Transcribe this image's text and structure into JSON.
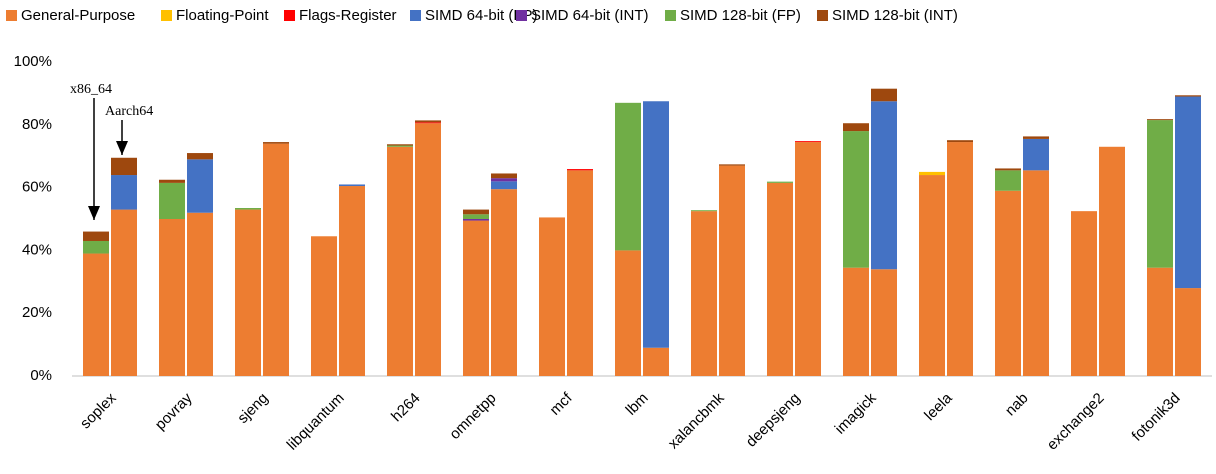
{
  "chart_data": {
    "type": "stacked_paired_bar",
    "categories": [
      "soplex",
      "povray",
      "sjeng",
      "libquantum",
      "h264",
      "omnetpp",
      "mcf",
      "lbm",
      "xalancbmk",
      "deepsjeng",
      "imagick",
      "leela",
      "nab",
      "exchange2",
      "fotonik3d"
    ],
    "annotations": [
      "x86_64",
      "Aarch64"
    ],
    "ylim": [
      0,
      100
    ],
    "yticks": [
      {
        "value": 0,
        "label": "0%"
      },
      {
        "value": 20,
        "label": "20%"
      },
      {
        "value": 40,
        "label": "40%"
      },
      {
        "value": 60,
        "label": "60%"
      },
      {
        "value": 80,
        "label": "80%"
      },
      {
        "value": 100,
        "label": "100%"
      }
    ],
    "grid": false,
    "legend": "top",
    "series": [
      {
        "name": "General-Purpose",
        "color": "#ed7d31",
        "values": [
          [
            39,
            53
          ],
          [
            50,
            52
          ],
          [
            53,
            74
          ],
          [
            44.5,
            60.5
          ],
          [
            73,
            80.5
          ],
          [
            49.5,
            59.5
          ],
          [
            50.5,
            65.5
          ],
          [
            40,
            9
          ],
          [
            52.5,
            67
          ],
          [
            61.5,
            74.5
          ],
          [
            34.5,
            34
          ],
          [
            64,
            74.5
          ],
          [
            59,
            65.5
          ],
          [
            52.5,
            73
          ],
          [
            34.5,
            28
          ]
        ]
      },
      {
        "name": "Floating-Point",
        "color": "#ffc000",
        "values": [
          [
            0,
            0
          ],
          [
            0,
            0
          ],
          [
            0,
            0
          ],
          [
            0,
            0
          ],
          [
            0,
            0
          ],
          [
            0,
            0
          ],
          [
            0,
            0
          ],
          [
            0,
            0
          ],
          [
            0,
            0
          ],
          [
            0,
            0
          ],
          [
            0,
            0
          ],
          [
            1,
            0
          ],
          [
            0,
            0
          ],
          [
            0,
            0
          ],
          [
            0,
            0
          ]
        ]
      },
      {
        "name": "Flags-Register",
        "color": "#ff0000",
        "values": [
          [
            0,
            0
          ],
          [
            0,
            0
          ],
          [
            0,
            0
          ],
          [
            0,
            0
          ],
          [
            0,
            0.3
          ],
          [
            0,
            0
          ],
          [
            0,
            0.4
          ],
          [
            0,
            0
          ],
          [
            0,
            0
          ],
          [
            0,
            0.3
          ],
          [
            0,
            0
          ],
          [
            0,
            0
          ],
          [
            0,
            0
          ],
          [
            0,
            0
          ],
          [
            0,
            0
          ]
        ]
      },
      {
        "name": "SIMD 64-bit (FP)",
        "color": "#4472c4",
        "values": [
          [
            0,
            11
          ],
          [
            0,
            17
          ],
          [
            0,
            0
          ],
          [
            0,
            0.5
          ],
          [
            0,
            0
          ],
          [
            0,
            2.5
          ],
          [
            0,
            0
          ],
          [
            0,
            78.5
          ],
          [
            0,
            0
          ],
          [
            0,
            0
          ],
          [
            0,
            53.5
          ],
          [
            0,
            0
          ],
          [
            0,
            10
          ],
          [
            0,
            0
          ],
          [
            0,
            61
          ]
        ]
      },
      {
        "name": "SIMD 64-bit (INT)",
        "color": "#7030a0",
        "values": [
          [
            0,
            0
          ],
          [
            0,
            0
          ],
          [
            0,
            0
          ],
          [
            0,
            0
          ],
          [
            0,
            0
          ],
          [
            0.5,
            1
          ],
          [
            0,
            0
          ],
          [
            0,
            0
          ],
          [
            0,
            0
          ],
          [
            0,
            0
          ],
          [
            0,
            0
          ],
          [
            0,
            0
          ],
          [
            0,
            0
          ],
          [
            0,
            0
          ],
          [
            0,
            0
          ]
        ]
      },
      {
        "name": "SIMD 128-bit (FP)",
        "color": "#70ad47",
        "values": [
          [
            4,
            0
          ],
          [
            11.5,
            0
          ],
          [
            0.5,
            0
          ],
          [
            0,
            0
          ],
          [
            0.4,
            0
          ],
          [
            1.5,
            0
          ],
          [
            0,
            0
          ],
          [
            47,
            0
          ],
          [
            0.3,
            0
          ],
          [
            0.4,
            0
          ],
          [
            43.5,
            0
          ],
          [
            0,
            0
          ],
          [
            6.5,
            0
          ],
          [
            0,
            0
          ],
          [
            47,
            0
          ]
        ]
      },
      {
        "name": "SIMD 128-bit (INT)",
        "color": "#9e480e",
        "values": [
          [
            3,
            5.5
          ],
          [
            1,
            2
          ],
          [
            0,
            0.5
          ],
          [
            0,
            0
          ],
          [
            0.4,
            0.6
          ],
          [
            1.5,
            1.5
          ],
          [
            0,
            0
          ],
          [
            0,
            0
          ],
          [
            0,
            0.4
          ],
          [
            0,
            0
          ],
          [
            2.5,
            4
          ],
          [
            0,
            0.6
          ],
          [
            0.6,
            0.8
          ],
          [
            0,
            0
          ],
          [
            0.3,
            0.4
          ]
        ]
      }
    ]
  }
}
